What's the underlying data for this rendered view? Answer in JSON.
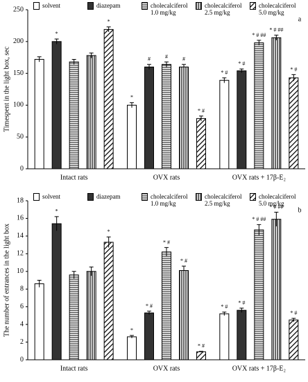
{
  "chart_data": [
    {
      "type": "bar",
      "panel_label": "a",
      "y_label": "Timespent in the light box, sec",
      "categories": [
        "Intact rats",
        "OVX rats",
        "OVX rats + 17β-E₂"
      ],
      "ylim": [
        0,
        250
      ],
      "yticks": [
        0,
        50,
        100,
        150,
        200,
        250
      ],
      "series": [
        {
          "name": "solvent",
          "color": "#000000",
          "pattern": "none",
          "values": [
            172,
            100,
            139
          ],
          "errors": [
            4,
            4,
            4
          ],
          "annotations": [
            null,
            "*",
            "* #"
          ]
        },
        {
          "name": "diazepam",
          "color": "#000000",
          "pattern": "solid",
          "values": [
            200,
            160,
            154
          ],
          "errors": [
            4,
            4,
            3
          ],
          "annotations": [
            "*",
            "#",
            "* #"
          ]
        },
        {
          "name": "cholecalciferol 1.0 mg/kg",
          "color": "#000000",
          "pattern": "horizontal",
          "values": [
            168,
            164,
            198
          ],
          "errors": [
            4,
            4,
            4
          ],
          "annotations": [
            null,
            "#",
            "* # ##"
          ]
        },
        {
          "name": "cholecalciferol 2.5 mg/kg",
          "color": "#000000",
          "pattern": "vertical",
          "values": [
            178,
            160,
            206
          ],
          "errors": [
            4,
            4,
            4
          ],
          "annotations": [
            null,
            "#",
            "* # ##"
          ]
        },
        {
          "name": "cholecalciferol 5.0 mg/kg",
          "color": "#000000",
          "pattern": "diagonal",
          "values": [
            219,
            79,
            143
          ],
          "errors": [
            4,
            4,
            5
          ],
          "annotations": [
            "*",
            "* #",
            "* #"
          ]
        }
      ]
    },
    {
      "type": "bar",
      "panel_label": "b",
      "y_label": "The number of entrances in the light box",
      "categories": [
        "Intact rats",
        "OVX rats",
        "OVX rats + 17β-E₂"
      ],
      "ylim": [
        0,
        18
      ],
      "yticks": [
        0,
        2,
        4,
        6,
        8,
        10,
        12,
        14,
        16,
        18
      ],
      "series": [
        {
          "name": "solvent",
          "color": "#000000",
          "pattern": "none",
          "values": [
            8.6,
            2.6,
            5.2
          ],
          "errors": [
            0.4,
            0.15,
            0.2
          ],
          "annotations": [
            null,
            "*",
            "* #"
          ]
        },
        {
          "name": "diazepam",
          "color": "#000000",
          "pattern": "solid",
          "values": [
            15.4,
            5.3,
            5.6
          ],
          "errors": [
            0.8,
            0.2,
            0.25
          ],
          "annotations": [
            "*",
            "* #",
            "* #"
          ]
        },
        {
          "name": "cholecalciferol 1.0 mg/kg",
          "color": "#000000",
          "pattern": "horizontal",
          "values": [
            9.6,
            12.2,
            14.7
          ],
          "errors": [
            0.4,
            0.5,
            0.6
          ],
          "annotations": [
            null,
            "* #",
            "* # ##"
          ]
        },
        {
          "name": "cholecalciferol 2.5 mg/kg",
          "color": "#000000",
          "pattern": "vertical",
          "values": [
            10.0,
            10.1,
            15.9
          ],
          "errors": [
            0.5,
            0.5,
            0.8
          ],
          "annotations": [
            null,
            "* #",
            "* # ##"
          ]
        },
        {
          "name": "cholecalciferol 5.0 mg/kg",
          "color": "#000000",
          "pattern": "diagonal",
          "values": [
            13.3,
            0.9,
            4.5
          ],
          "errors": [
            0.6,
            0.05,
            0.2
          ],
          "annotations": [
            "*",
            "* #",
            "* #"
          ]
        }
      ]
    }
  ]
}
